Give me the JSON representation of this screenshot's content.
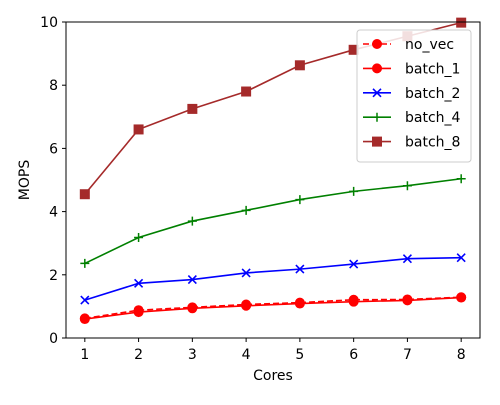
{
  "chart_data": {
    "type": "line",
    "title": "",
    "xlabel": "Cores",
    "ylabel": "MOPS",
    "x": [
      1,
      2,
      3,
      4,
      5,
      6,
      7,
      8
    ],
    "xticks": [
      "1",
      "2",
      "3",
      "4",
      "5",
      "6",
      "7",
      "8"
    ],
    "yticks": [
      "0",
      "2",
      "4",
      "6",
      "8",
      "10"
    ],
    "xlim": [
      0.65,
      8.35
    ],
    "ylim": [
      0,
      10
    ],
    "grid": false,
    "legend_position": "top-right",
    "series": [
      {
        "name": "no_vec",
        "color": "#ff0000",
        "dashed": true,
        "marker": "circle",
        "values": [
          0.62,
          0.88,
          0.97,
          1.06,
          1.12,
          1.21,
          1.22,
          1.29
        ]
      },
      {
        "name": "batch_1",
        "color": "#ff0000",
        "dashed": false,
        "marker": "circle",
        "values": [
          0.6,
          0.82,
          0.94,
          1.02,
          1.09,
          1.15,
          1.19,
          1.28
        ]
      },
      {
        "name": "batch_2",
        "color": "#0000ff",
        "dashed": false,
        "marker": "x",
        "values": [
          1.2,
          1.73,
          1.85,
          2.06,
          2.18,
          2.34,
          2.51,
          2.54
        ]
      },
      {
        "name": "batch_4",
        "color": "#008000",
        "dashed": false,
        "marker": "plus",
        "values": [
          2.36,
          3.18,
          3.7,
          4.04,
          4.38,
          4.64,
          4.82,
          5.04
        ]
      },
      {
        "name": "batch_8",
        "color": "#a52a2a",
        "dashed": false,
        "marker": "square",
        "values": [
          4.55,
          6.6,
          7.25,
          7.8,
          8.63,
          9.12,
          9.55,
          9.98
        ]
      }
    ]
  }
}
